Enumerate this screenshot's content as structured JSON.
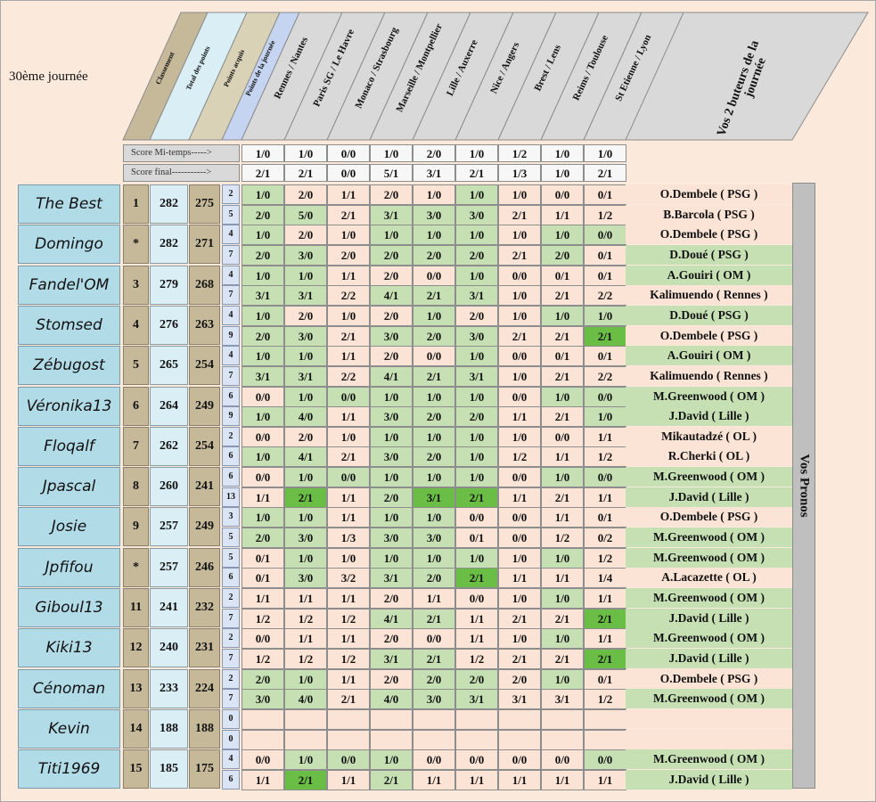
{
  "round_title": "30ème journée",
  "headers": {
    "classement": "Classement",
    "total": "Total des points",
    "acquis": "Points acquis",
    "journee": "Points de la journée",
    "matches": [
      "Rennes / Nantes",
      "Paris SG / Le Havre",
      "Monaco / Strasbourg",
      "Marseille / Montpellier",
      "Lille / Auxerre",
      "Nice / Angers",
      "Brest / Lens",
      "Reims / Toulouse",
      "St Etienne / Lyon"
    ],
    "buteurs_line1": "Vos 2 buteurs de la",
    "buteurs_line2": "journée"
  },
  "score_rows": {
    "mi_temps_label": "Score Mi-temps----->",
    "final_label": "Score final----------->",
    "mi_temps": [
      "1/0",
      "1/0",
      "0/0",
      "1/0",
      "2/0",
      "1/0",
      "1/2",
      "1/0",
      "1/0"
    ],
    "final": [
      "2/1",
      "2/1",
      "0/0",
      "5/1",
      "3/1",
      "2/1",
      "1/3",
      "1/0",
      "2/1"
    ]
  },
  "vos_pronos": "Vos Pronos",
  "colors": {
    "pink": "#fbe3d6",
    "green": "#c6e0b4",
    "dark_green": "#6abd45",
    "name_bg": "#b2dbe8",
    "rank_bg": "#c6b99a"
  },
  "players": [
    {
      "name": "The Best",
      "rank": "1",
      "total": "282",
      "acquis": "275",
      "rows": [
        {
          "pts": "2",
          "scores": [
            "1/0",
            "2/0",
            "1/1",
            "2/0",
            "1/0",
            "1/0",
            "1/0",
            "0/0",
            "0/1"
          ],
          "bg": [
            "g",
            "p",
            "p",
            "p",
            "p",
            "g",
            "p",
            "p",
            "p"
          ],
          "scorer": "O.Dembele ( PSG )",
          "scorer_bg": "p"
        },
        {
          "pts": "5",
          "scores": [
            "2/0",
            "5/0",
            "2/1",
            "3/1",
            "3/0",
            "3/0",
            "2/1",
            "1/1",
            "1/2"
          ],
          "bg": [
            "g",
            "g",
            "p",
            "g",
            "g",
            "g",
            "p",
            "p",
            "p"
          ],
          "scorer": "B.Barcola ( PSG )",
          "scorer_bg": "p"
        }
      ]
    },
    {
      "name": "Domingo",
      "rank": "*",
      "total": "282",
      "acquis": "271",
      "rows": [
        {
          "pts": "4",
          "scores": [
            "1/0",
            "2/0",
            "1/0",
            "1/0",
            "1/0",
            "1/0",
            "1/0",
            "1/0",
            "0/0"
          ],
          "bg": [
            "g",
            "p",
            "p",
            "g",
            "g",
            "g",
            "p",
            "g",
            "g"
          ],
          "scorer": "O.Dembele ( PSG )",
          "scorer_bg": "p"
        },
        {
          "pts": "7",
          "scores": [
            "2/0",
            "3/0",
            "2/0",
            "2/0",
            "2/0",
            "2/0",
            "2/1",
            "2/0",
            "0/1"
          ],
          "bg": [
            "g",
            "g",
            "p",
            "g",
            "g",
            "g",
            "p",
            "g",
            "p"
          ],
          "scorer": "D.Doué ( PSG )",
          "scorer_bg": "g"
        }
      ]
    },
    {
      "name": "Fandel'OM",
      "rank": "3",
      "total": "279",
      "acquis": "268",
      "rows": [
        {
          "pts": "4",
          "scores": [
            "1/0",
            "1/0",
            "1/1",
            "2/0",
            "0/0",
            "1/0",
            "0/0",
            "0/1",
            "0/1"
          ],
          "bg": [
            "g",
            "g",
            "p",
            "p",
            "p",
            "g",
            "p",
            "p",
            "p"
          ],
          "scorer": "A.Gouiri ( OM )",
          "scorer_bg": "g"
        },
        {
          "pts": "7",
          "scores": [
            "3/1",
            "3/1",
            "2/2",
            "4/1",
            "2/1",
            "3/1",
            "1/0",
            "2/1",
            "2/2"
          ],
          "bg": [
            "g",
            "g",
            "p",
            "g",
            "g",
            "g",
            "p",
            "p",
            "p"
          ],
          "scorer": "Kalimuendo ( Rennes )",
          "scorer_bg": "p"
        }
      ]
    },
    {
      "name": "Stomsed",
      "rank": "4",
      "total": "276",
      "acquis": "263",
      "rows": [
        {
          "pts": "4",
          "scores": [
            "1/0",
            "2/0",
            "1/0",
            "2/0",
            "1/0",
            "2/0",
            "1/0",
            "1/0",
            "1/0"
          ],
          "bg": [
            "g",
            "p",
            "p",
            "p",
            "g",
            "p",
            "p",
            "g",
            "g"
          ],
          "scorer": "D.Doué ( PSG )",
          "scorer_bg": "g"
        },
        {
          "pts": "9",
          "scores": [
            "2/0",
            "3/0",
            "2/1",
            "3/0",
            "2/0",
            "3/0",
            "2/1",
            "2/1",
            "2/1"
          ],
          "bg": [
            "g",
            "g",
            "p",
            "g",
            "g",
            "g",
            "p",
            "p",
            "d"
          ],
          "scorer": "O.Dembele ( PSG )",
          "scorer_bg": "p"
        }
      ]
    },
    {
      "name": "Zébugost",
      "rank": "5",
      "total": "265",
      "acquis": "254",
      "rows": [
        {
          "pts": "4",
          "scores": [
            "1/0",
            "1/0",
            "1/1",
            "2/0",
            "0/0",
            "1/0",
            "0/0",
            "0/1",
            "0/1"
          ],
          "bg": [
            "g",
            "g",
            "p",
            "p",
            "p",
            "g",
            "p",
            "p",
            "p"
          ],
          "scorer": "A.Gouiri ( OM )",
          "scorer_bg": "g"
        },
        {
          "pts": "7",
          "scores": [
            "3/1",
            "3/1",
            "2/2",
            "4/1",
            "2/1",
            "3/1",
            "1/0",
            "2/1",
            "2/2"
          ],
          "bg": [
            "g",
            "g",
            "p",
            "g",
            "g",
            "g",
            "p",
            "p",
            "p"
          ],
          "scorer": "Kalimuendo ( Rennes )",
          "scorer_bg": "p"
        }
      ]
    },
    {
      "name": "Véronika13",
      "rank": "6",
      "total": "264",
      "acquis": "249",
      "rows": [
        {
          "pts": "6",
          "scores": [
            "0/0",
            "1/0",
            "0/0",
            "1/0",
            "1/0",
            "1/0",
            "0/0",
            "1/0",
            "0/0"
          ],
          "bg": [
            "p",
            "g",
            "g",
            "g",
            "g",
            "g",
            "p",
            "g",
            "g"
          ],
          "scorer": "M.Greenwood ( OM )",
          "scorer_bg": "g"
        },
        {
          "pts": "9",
          "scores": [
            "1/0",
            "4/0",
            "1/1",
            "3/0",
            "2/0",
            "2/0",
            "1/1",
            "2/1",
            "1/0"
          ],
          "bg": [
            "g",
            "g",
            "p",
            "g",
            "g",
            "g",
            "p",
            "p",
            "g"
          ],
          "scorer": "J.David ( Lille )",
          "scorer_bg": "g"
        }
      ]
    },
    {
      "name": "Floqalf",
      "rank": "7",
      "total": "262",
      "acquis": "254",
      "rows": [
        {
          "pts": "2",
          "scores": [
            "0/0",
            "2/0",
            "1/0",
            "1/0",
            "1/0",
            "1/0",
            "1/0",
            "0/0",
            "1/1"
          ],
          "bg": [
            "p",
            "p",
            "p",
            "g",
            "g",
            "g",
            "p",
            "p",
            "p"
          ],
          "scorer": "Mikautadzé ( OL )",
          "scorer_bg": "p"
        },
        {
          "pts": "6",
          "scores": [
            "1/0",
            "4/1",
            "2/1",
            "3/0",
            "2/0",
            "1/0",
            "1/2",
            "1/1",
            "1/2"
          ],
          "bg": [
            "g",
            "g",
            "p",
            "g",
            "g",
            "g",
            "p",
            "p",
            "p"
          ],
          "scorer": "R.Cherki ( OL )",
          "scorer_bg": "p"
        }
      ]
    },
    {
      "name": "Jpascal",
      "rank": "8",
      "total": "260",
      "acquis": "241",
      "rows": [
        {
          "pts": "6",
          "scores": [
            "0/0",
            "1/0",
            "0/0",
            "1/0",
            "1/0",
            "1/0",
            "0/0",
            "1/0",
            "0/0"
          ],
          "bg": [
            "p",
            "g",
            "g",
            "g",
            "g",
            "g",
            "p",
            "g",
            "g"
          ],
          "scorer": "M.Greenwood ( OM )",
          "scorer_bg": "g"
        },
        {
          "pts": "13",
          "scores": [
            "1/1",
            "2/1",
            "1/1",
            "2/0",
            "3/1",
            "2/1",
            "1/1",
            "2/1",
            "1/1"
          ],
          "bg": [
            "p",
            "d",
            "p",
            "g",
            "d",
            "d",
            "p",
            "p",
            "p"
          ],
          "scorer": "J.David ( Lille )",
          "scorer_bg": "g"
        }
      ]
    },
    {
      "name": "Josie",
      "rank": "9",
      "total": "257",
      "acquis": "249",
      "rows": [
        {
          "pts": "3",
          "scores": [
            "1/0",
            "1/0",
            "1/1",
            "1/0",
            "1/0",
            "0/0",
            "0/0",
            "1/1",
            "0/1"
          ],
          "bg": [
            "g",
            "g",
            "p",
            "g",
            "g",
            "p",
            "p",
            "p",
            "p"
          ],
          "scorer": "O.Dembele ( PSG )",
          "scorer_bg": "p"
        },
        {
          "pts": "5",
          "scores": [
            "2/0",
            "3/0",
            "1/3",
            "3/0",
            "3/0",
            "0/1",
            "0/0",
            "1/2",
            "0/2"
          ],
          "bg": [
            "g",
            "g",
            "p",
            "g",
            "g",
            "p",
            "p",
            "p",
            "p"
          ],
          "scorer": "M.Greenwood ( OM )",
          "scorer_bg": "g"
        }
      ]
    },
    {
      "name": "Jpfifou",
      "rank": "*",
      "total": "257",
      "acquis": "246",
      "rows": [
        {
          "pts": "5",
          "scores": [
            "0/1",
            "1/0",
            "1/0",
            "1/0",
            "1/0",
            "1/0",
            "1/0",
            "1/0",
            "1/2"
          ],
          "bg": [
            "p",
            "g",
            "p",
            "g",
            "g",
            "g",
            "p",
            "g",
            "p"
          ],
          "scorer": "M.Greenwood ( OM )",
          "scorer_bg": "g"
        },
        {
          "pts": "6",
          "scores": [
            "0/1",
            "3/0",
            "3/2",
            "3/1",
            "2/0",
            "2/1",
            "1/1",
            "1/1",
            "1/4"
          ],
          "bg": [
            "p",
            "g",
            "p",
            "g",
            "g",
            "d",
            "p",
            "p",
            "p"
          ],
          "scorer": "A.Lacazette ( OL )",
          "scorer_bg": "p"
        }
      ]
    },
    {
      "name": "Giboul13",
      "rank": "11",
      "total": "241",
      "acquis": "232",
      "rows": [
        {
          "pts": "2",
          "scores": [
            "1/1",
            "1/1",
            "1/1",
            "2/0",
            "1/1",
            "0/0",
            "1/0",
            "1/0",
            "1/1"
          ],
          "bg": [
            "p",
            "p",
            "p",
            "p",
            "p",
            "p",
            "p",
            "g",
            "p"
          ],
          "scorer": "M.Greenwood ( OM )",
          "scorer_bg": "g"
        },
        {
          "pts": "7",
          "scores": [
            "1/2",
            "1/2",
            "1/2",
            "4/1",
            "2/1",
            "1/1",
            "2/1",
            "2/1",
            "2/1"
          ],
          "bg": [
            "p",
            "p",
            "p",
            "g",
            "g",
            "p",
            "p",
            "p",
            "d"
          ],
          "scorer": "J.David ( Lille )",
          "scorer_bg": "g"
        }
      ]
    },
    {
      "name": "Kiki13",
      "rank": "12",
      "total": "240",
      "acquis": "231",
      "rows": [
        {
          "pts": "2",
          "scores": [
            "0/0",
            "1/1",
            "1/1",
            "2/0",
            "0/0",
            "1/1",
            "1/0",
            "1/0",
            "1/1"
          ],
          "bg": [
            "p",
            "p",
            "p",
            "p",
            "p",
            "p",
            "p",
            "g",
            "p"
          ],
          "scorer": "M.Greenwood ( OM )",
          "scorer_bg": "g"
        },
        {
          "pts": "7",
          "scores": [
            "1/2",
            "1/2",
            "1/2",
            "3/1",
            "2/1",
            "1/2",
            "2/1",
            "2/1",
            "2/1"
          ],
          "bg": [
            "p",
            "p",
            "p",
            "g",
            "g",
            "p",
            "p",
            "p",
            "d"
          ],
          "scorer": "J.David ( Lille )",
          "scorer_bg": "g"
        }
      ]
    },
    {
      "name": "Cénoman",
      "rank": "13",
      "total": "233",
      "acquis": "224",
      "rows": [
        {
          "pts": "2",
          "scores": [
            "2/0",
            "1/0",
            "1/1",
            "2/0",
            "2/0",
            "2/0",
            "2/0",
            "1/0",
            "0/1"
          ],
          "bg": [
            "g",
            "g",
            "p",
            "p",
            "g",
            "g",
            "p",
            "g",
            "p"
          ],
          "scorer": "O.Dembele ( PSG )",
          "scorer_bg": "p"
        },
        {
          "pts": "7",
          "scores": [
            "3/0",
            "4/0",
            "2/1",
            "4/0",
            "3/0",
            "3/1",
            "3/1",
            "3/1",
            "1/2"
          ],
          "bg": [
            "g",
            "g",
            "p",
            "g",
            "g",
            "g",
            "p",
            "p",
            "p"
          ],
          "scorer": "M.Greenwood ( OM )",
          "scorer_bg": "g"
        }
      ]
    },
    {
      "name": "Kevin",
      "rank": "14",
      "total": "188",
      "acquis": "188",
      "rows": [
        {
          "pts": "0",
          "scores": [
            "",
            "",
            "",
            "",
            "",
            "",
            "",
            "",
            ""
          ],
          "bg": [
            "p",
            "p",
            "p",
            "p",
            "p",
            "p",
            "p",
            "p",
            "p"
          ],
          "scorer": "",
          "scorer_bg": "p"
        },
        {
          "pts": "0",
          "scores": [
            "",
            "",
            "",
            "",
            "",
            "",
            "",
            "",
            ""
          ],
          "bg": [
            "p",
            "p",
            "p",
            "p",
            "p",
            "p",
            "p",
            "p",
            "p"
          ],
          "scorer": "",
          "scorer_bg": "p"
        }
      ]
    },
    {
      "name": "Titi1969",
      "rank": "15",
      "total": "185",
      "acquis": "175",
      "rows": [
        {
          "pts": "4",
          "scores": [
            "0/0",
            "1/0",
            "0/0",
            "1/0",
            "0/0",
            "0/0",
            "0/0",
            "0/0",
            "0/0"
          ],
          "bg": [
            "p",
            "g",
            "g",
            "g",
            "p",
            "p",
            "p",
            "p",
            "g"
          ],
          "scorer": "M.Greenwood ( OM )",
          "scorer_bg": "g"
        },
        {
          "pts": "6",
          "scores": [
            "1/1",
            "2/1",
            "1/1",
            "2/1",
            "1/1",
            "1/1",
            "1/1",
            "1/1",
            "1/1"
          ],
          "bg": [
            "p",
            "d",
            "p",
            "g",
            "p",
            "p",
            "p",
            "p",
            "p"
          ],
          "scorer": "J.David ( Lille )",
          "scorer_bg": "g"
        }
      ]
    }
  ]
}
